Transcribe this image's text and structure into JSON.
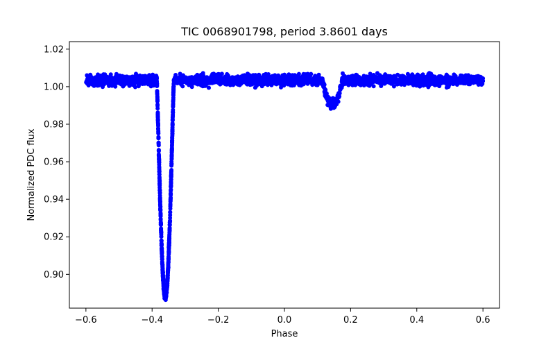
{
  "chart_data": {
    "type": "scatter",
    "title": "TIC 0068901798, period 3.8601 days",
    "xlabel": "Phase",
    "ylabel": "Normalized PDC flux",
    "xlim": [
      -0.65,
      0.65
    ],
    "ylim": [
      0.882,
      1.024
    ],
    "xticks": [
      -0.6,
      -0.4,
      -0.2,
      0.0,
      0.2,
      0.4,
      0.6
    ],
    "xtick_labels": [
      "−0.6",
      "−0.4",
      "−0.2",
      "0.0",
      "0.2",
      "0.4",
      "0.6"
    ],
    "yticks": [
      0.9,
      0.92,
      0.94,
      0.96,
      0.98,
      1.0,
      1.02
    ],
    "ytick_labels": [
      "0.90",
      "0.92",
      "0.94",
      "0.96",
      "0.98",
      "1.00",
      "1.02"
    ],
    "grid": false,
    "series": [
      {
        "name": "PDC flux",
        "color": "#0000ff",
        "phase_range": [
          -0.6,
          0.6
        ],
        "baseline": 1.0035,
        "scatter_sigma": 0.003,
        "primary_eclipse": {
          "center": -0.36,
          "min_flux": 0.888,
          "half_width": 0.026
        },
        "secondary_eclipse": {
          "center": 0.145,
          "min_flux": 0.99,
          "half_width": 0.03
        }
      }
    ]
  }
}
